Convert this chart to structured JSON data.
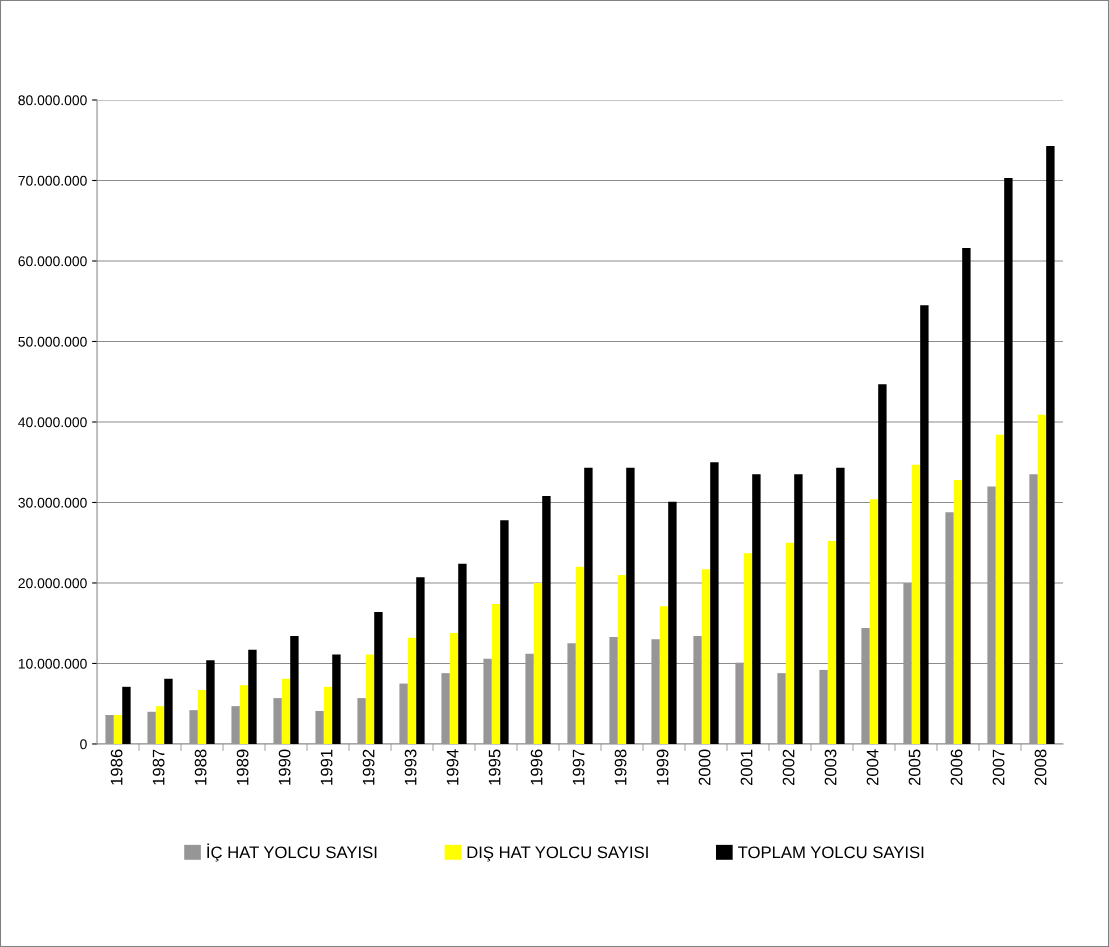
{
  "chart_data": {
    "type": "bar",
    "categories": [
      "1986",
      "1987",
      "1988",
      "1989",
      "1990",
      "1991",
      "1992",
      "1993",
      "1994",
      "1995",
      "1996",
      "1997",
      "1998",
      "1999",
      "2000",
      "2001",
      "2002",
      "2003",
      "2004",
      "2005",
      "2006",
      "2007",
      "2008"
    ],
    "series": [
      {
        "name": "İÇ HAT YOLCU SAYISI",
        "color": "#969696",
        "values": [
          3600000,
          4000000,
          4200000,
          4700000,
          5700000,
          4100000,
          5700000,
          7500000,
          8800000,
          10600000,
          11200000,
          12500000,
          13300000,
          13000000,
          13400000,
          10100000,
          8800000,
          9200000,
          14400000,
          20000000,
          28800000,
          32000000,
          33500000
        ]
      },
      {
        "name": "DIŞ HAT YOLCU SAYISI",
        "color": "#ffff00",
        "values": [
          3600000,
          4700000,
          6700000,
          7300000,
          8100000,
          7100000,
          11100000,
          13200000,
          13800000,
          17400000,
          20000000,
          22000000,
          21000000,
          17100000,
          21700000,
          23700000,
          25000000,
          25200000,
          30400000,
          34700000,
          32800000,
          38400000,
          40900000
        ]
      },
      {
        "name": "TOPLAM YOLCU SAYISI",
        "color": "#000000",
        "values": [
          7100000,
          8100000,
          10400000,
          11700000,
          13400000,
          11100000,
          16400000,
          20700000,
          22400000,
          27800000,
          30800000,
          34300000,
          34300000,
          30100000,
          35000000,
          33500000,
          33500000,
          34300000,
          44700000,
          54500000,
          61600000,
          70300000,
          74300000
        ]
      }
    ],
    "ylim": [
      0,
      80000000
    ],
    "yticks": [
      0,
      {
        "value": 10000000,
        "label": "10.000.000"
      },
      {
        "value": 20000000,
        "label": "20.000.000"
      },
      {
        "value": 30000000,
        "label": "30.000.000"
      },
      {
        "value": 40000000,
        "label": "40.000.000"
      },
      {
        "value": 50000000,
        "label": "50.000.000"
      },
      {
        "value": 60000000,
        "label": "60.000.000"
      },
      {
        "value": 70000000,
        "label": "70.000.000"
      },
      {
        "value": 80000000,
        "label": "80.000.000"
      }
    ],
    "grid": "y",
    "legend": "bottom"
  }
}
